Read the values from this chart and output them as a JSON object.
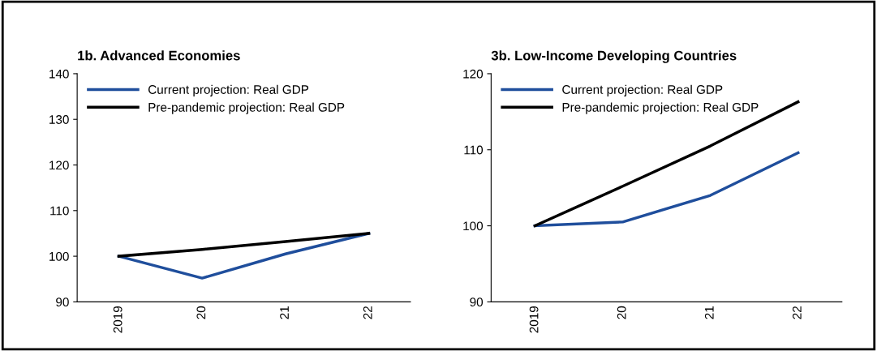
{
  "chart_data": [
    {
      "type": "line",
      "title": "1b. Advanced Economies",
      "categories": [
        "2019",
        "20",
        "21",
        "22"
      ],
      "series": [
        {
          "name": "Current projection: Real GDP",
          "color": "#1f4e9c",
          "values": [
            100,
            95.2,
            100.5,
            105
          ]
        },
        {
          "name": "Pre-pandemic projection: Real GDP",
          "color": "#000000",
          "values": [
            100,
            101.5,
            103.2,
            105
          ]
        }
      ],
      "ylim": [
        90,
        140
      ],
      "yticks": [
        90,
        100,
        110,
        120,
        130,
        140
      ],
      "legend": "top left",
      "grid": false,
      "marker": "none",
      "line_style": "solid"
    },
    {
      "type": "line",
      "title": "3b. Low-Income Developing Countries",
      "categories": [
        "2019",
        "20",
        "21",
        "22"
      ],
      "series": [
        {
          "name": "Current projection: Real GDP",
          "color": "#1f4e9c",
          "values": [
            100,
            100.5,
            104,
            109.6
          ]
        },
        {
          "name": "Pre-pandemic projection: Real GDP",
          "color": "#000000",
          "values": [
            100,
            105.2,
            110.5,
            116.3
          ]
        }
      ],
      "ylim": [
        90,
        120
      ],
      "yticks": [
        90,
        100,
        110,
        120
      ],
      "legend": "top left",
      "grid": false,
      "marker": "none",
      "line_style": "solid"
    }
  ]
}
